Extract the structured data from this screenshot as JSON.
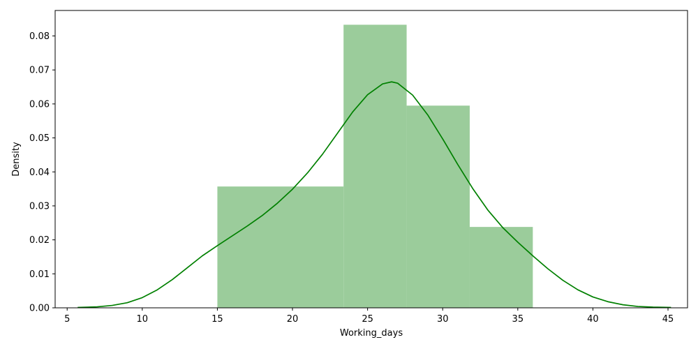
{
  "chart_data": {
    "type": "bar",
    "title": "",
    "xlabel": "Working_days",
    "ylabel": "Density",
    "xlim": [
      4.2,
      46.3
    ],
    "ylim": [
      0,
      0.0875
    ],
    "xticks": [
      5,
      10,
      15,
      20,
      25,
      30,
      35,
      40,
      45
    ],
    "yticks": [
      0.0,
      0.01,
      0.02,
      0.03,
      0.04,
      0.05,
      0.06,
      0.07,
      0.08
    ],
    "ytick_labels": [
      "0.00",
      "0.01",
      "0.02",
      "0.03",
      "0.04",
      "0.05",
      "0.06",
      "0.07",
      "0.08"
    ],
    "grid": false,
    "histogram": {
      "color": "#9bcc9b",
      "bins": [
        {
          "x0": 15.0,
          "x1": 23.4,
          "density": 0.0357
        },
        {
          "x0": 23.4,
          "x1": 27.6,
          "density": 0.0833
        },
        {
          "x0": 27.6,
          "x1": 31.8,
          "density": 0.0595
        },
        {
          "x0": 31.8,
          "x1": 36.0,
          "density": 0.0238
        }
      ]
    },
    "kde": {
      "color": "#008000",
      "x": [
        5.7,
        7,
        8,
        9,
        10,
        11,
        12,
        13,
        14,
        15,
        16,
        17,
        18,
        19,
        20,
        21,
        22,
        23,
        24,
        25,
        26,
        26.6,
        27,
        28,
        29,
        30,
        31,
        32,
        33,
        34,
        35,
        36,
        37,
        38,
        39,
        40,
        41,
        42,
        43,
        44,
        45.2
      ],
      "y": [
        0.0001,
        0.0003,
        0.0007,
        0.0015,
        0.003,
        0.0053,
        0.0083,
        0.0118,
        0.0153,
        0.0183,
        0.0212,
        0.0241,
        0.0272,
        0.0308,
        0.0349,
        0.0397,
        0.0452,
        0.0514,
        0.0576,
        0.0627,
        0.0659,
        0.0665,
        0.0661,
        0.0626,
        0.0568,
        0.0497,
        0.0422,
        0.0351,
        0.0288,
        0.0236,
        0.0193,
        0.0153,
        0.0115,
        0.0081,
        0.0053,
        0.0032,
        0.0018,
        0.0009,
        0.0004,
        0.0002,
        0.0001
      ]
    }
  }
}
